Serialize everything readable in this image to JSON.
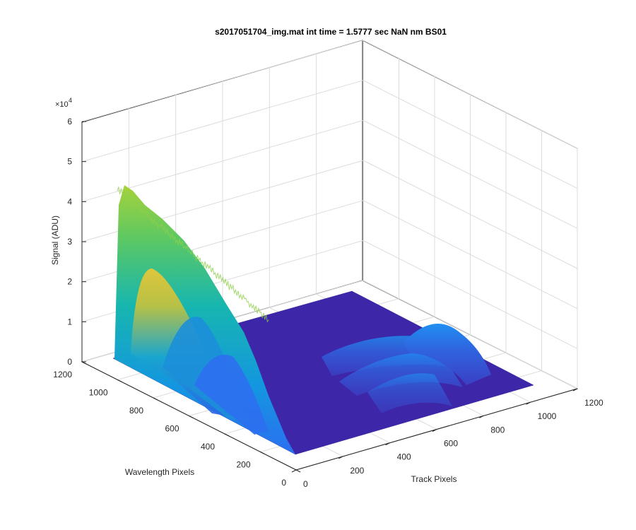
{
  "chart_data": {
    "type": "surface",
    "title": "s2017051704_img.mat int time = 1.5777 sec  NaN nm BS01",
    "xlabel": "Track Pixels",
    "ylabel": "Wavelength Pixels",
    "zlabel": "Signal (ADU)",
    "xlim": [
      0,
      1200
    ],
    "ylim": [
      0,
      1200
    ],
    "zlim": [
      0,
      60000
    ],
    "x_ticks": [
      "0",
      "200",
      "400",
      "600",
      "800",
      "1000",
      "1200"
    ],
    "y_ticks": [
      "0",
      "200",
      "400",
      "600",
      "800",
      "1000",
      "1200"
    ],
    "z_ticks": [
      "0",
      "1",
      "2",
      "3",
      "4",
      "5",
      "6"
    ],
    "z_exponent_label": "×10",
    "z_exponent_power": "4",
    "grid": true,
    "colormap": "parula",
    "colors": {
      "low": "#3e26a8",
      "mid": "#1ea9c4",
      "high": "#f0c734"
    },
    "peak_signal_approx": 43000,
    "main_ridges": [
      {
        "track_pixel": 20,
        "peak_signal": 42000
      },
      {
        "track_pixel": 120,
        "peak_signal": 30000
      },
      {
        "track_pixel": 230,
        "peak_signal": 22000
      },
      {
        "track_pixel": 340,
        "peak_signal": 14000
      }
    ],
    "secondary_ridges": [
      {
        "wavelength_pixel": 980,
        "peak_signal": 7000
      },
      {
        "wavelength_pixel": 820,
        "peak_signal": 4000
      },
      {
        "wavelength_pixel": 680,
        "peak_signal": 3000
      }
    ]
  }
}
